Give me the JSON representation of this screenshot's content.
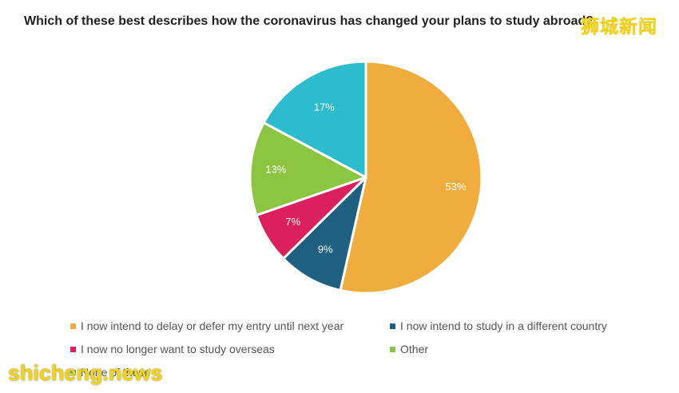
{
  "question": "Which of these best describes how the coronavirus has changed your plans to study abroad?",
  "watermark_cn": "狮城新闻",
  "watermark_en": "shicheng.news",
  "chart_data": {
    "type": "pie",
    "title": "Which of these best describes how the coronavirus has changed your plans to study abroad?",
    "unit": "%",
    "slices": [
      {
        "label": "I now intend to delay or defer my entry until next year",
        "value": 53,
        "display": "53%",
        "color": "#f0ad3e"
      },
      {
        "label": "I now intend to study in a different country",
        "value": 9,
        "display": "9%",
        "color": "#1f5f80"
      },
      {
        "label": "I now no longer want to study overseas",
        "value": 7,
        "display": "7%",
        "color": "#dc1f5e"
      },
      {
        "label": "Other",
        "value": 13,
        "display": "13%",
        "color": "#8cc641"
      },
      {
        "label": "None of these",
        "value": 17,
        "display": "17%",
        "color": "#2dbccd"
      }
    ],
    "legend_placement": "bottom"
  }
}
